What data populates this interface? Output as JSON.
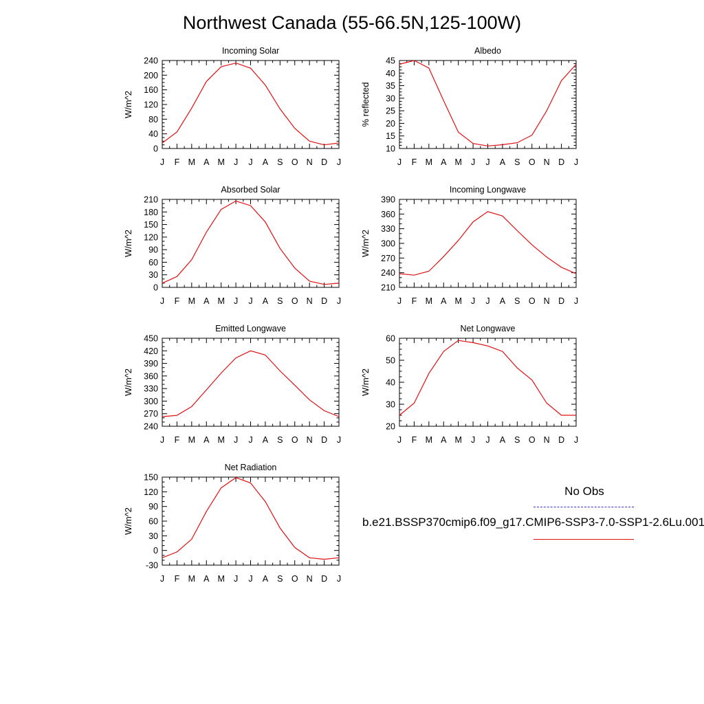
{
  "figure": {
    "title": "Northwest Canada (55-66.5N,125-100W)"
  },
  "legend": {
    "obs_label": "No Obs",
    "run_label": "b.e21.BSSP370cmip6.f09_g17.CMIP6-SSP3-7.0-SSP1-2.6Lu.001",
    "obs_color": "#3333cc",
    "run_color": "#e01010"
  },
  "chart_data": [
    {
      "type": "line",
      "title": "Incoming Solar",
      "ylabel": "W/m^2",
      "xlabel": "",
      "categories": [
        "J",
        "F",
        "M",
        "A",
        "M",
        "J",
        "J",
        "A",
        "S",
        "O",
        "N",
        "D",
        "J"
      ],
      "ylim": [
        0,
        240
      ],
      "yticks": [
        0,
        40,
        80,
        120,
        160,
        200,
        240
      ],
      "series": [
        {
          "values": [
            15,
            45,
            110,
            183,
            223,
            233,
            219,
            173,
            108,
            55,
            20,
            10,
            15
          ],
          "color": "#e01010"
        }
      ]
    },
    {
      "type": "line",
      "title": "Albedo",
      "ylabel": "% reflected",
      "xlabel": "",
      "categories": [
        "J",
        "F",
        "M",
        "A",
        "M",
        "J",
        "J",
        "A",
        "S",
        "O",
        "N",
        "D",
        "J"
      ],
      "ylim": [
        10,
        45
      ],
      "yticks": [
        10,
        15,
        20,
        25,
        30,
        35,
        40,
        45
      ],
      "series": [
        {
          "values": [
            43.5,
            45,
            42,
            29,
            16.5,
            12,
            11,
            11.5,
            12.3,
            15.3,
            25,
            37,
            43.5
          ],
          "color": "#e01010"
        }
      ]
    },
    {
      "type": "line",
      "title": "Absorbed Solar",
      "ylabel": "W/m^2",
      "xlabel": "",
      "categories": [
        "J",
        "F",
        "M",
        "A",
        "M",
        "J",
        "J",
        "A",
        "S",
        "O",
        "N",
        "D",
        "J"
      ],
      "ylim": [
        0,
        210
      ],
      "yticks": [
        0,
        30,
        60,
        90,
        120,
        150,
        180,
        210
      ],
      "series": [
        {
          "values": [
            10,
            26,
            66,
            132,
            186,
            206,
            195,
            156,
            93,
            46,
            15,
            7,
            10
          ],
          "color": "#e01010"
        }
      ]
    },
    {
      "type": "line",
      "title": "Incoming Longwave",
      "ylabel": "W/m^2",
      "xlabel": "",
      "categories": [
        "J",
        "F",
        "M",
        "A",
        "M",
        "J",
        "J",
        "A",
        "S",
        "O",
        "N",
        "D",
        "J"
      ],
      "ylim": [
        210,
        390
      ],
      "yticks": [
        210,
        240,
        270,
        300,
        330,
        360,
        390
      ],
      "series": [
        {
          "values": [
            238,
            235,
            243,
            273,
            306,
            344,
            365,
            356,
            326,
            297,
            272,
            251,
            238
          ],
          "color": "#e01010"
        }
      ]
    },
    {
      "type": "line",
      "title": "Emitted Longwave",
      "ylabel": "W/m^2",
      "xlabel": "",
      "categories": [
        "J",
        "F",
        "M",
        "A",
        "M",
        "J",
        "J",
        "A",
        "S",
        "O",
        "N",
        "D",
        "J"
      ],
      "ylim": [
        240,
        450
      ],
      "yticks": [
        240,
        270,
        300,
        330,
        360,
        390,
        420,
        450
      ],
      "series": [
        {
          "values": [
            263,
            266,
            287,
            327,
            367,
            403,
            420,
            410,
            372,
            338,
            303,
            277,
            263
          ],
          "color": "#e01010"
        }
      ]
    },
    {
      "type": "line",
      "title": "Net Longwave",
      "ylabel": "W/m^2",
      "xlabel": "",
      "categories": [
        "J",
        "F",
        "M",
        "A",
        "M",
        "J",
        "J",
        "A",
        "S",
        "O",
        "N",
        "D",
        "J"
      ],
      "ylim": [
        20,
        60
      ],
      "yticks": [
        20,
        30,
        40,
        50,
        60
      ],
      "series": [
        {
          "values": [
            25,
            30.5,
            44,
            54,
            59,
            58,
            56.5,
            54,
            46.5,
            41,
            30.5,
            25,
            25
          ],
          "color": "#e01010"
        }
      ]
    },
    {
      "type": "line",
      "title": "Net Radiation",
      "ylabel": "W/m^2",
      "xlabel": "",
      "categories": [
        "J",
        "F",
        "M",
        "A",
        "M",
        "J",
        "J",
        "A",
        "S",
        "O",
        "N",
        "D",
        "J"
      ],
      "ylim": [
        -30,
        150
      ],
      "yticks": [
        -30,
        0,
        30,
        60,
        90,
        120,
        150
      ],
      "series": [
        {
          "values": [
            -15,
            -3,
            23,
            80,
            128,
            149,
            138,
            100,
            46,
            6,
            -15,
            -18,
            -15
          ],
          "color": "#e01010"
        }
      ]
    }
  ]
}
